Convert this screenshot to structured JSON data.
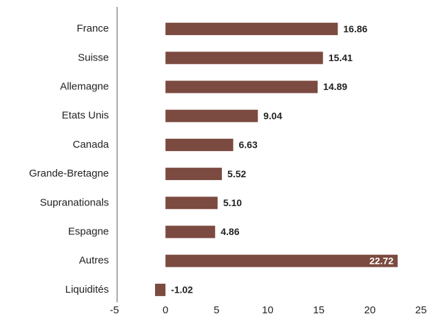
{
  "chart_data": {
    "type": "bar",
    "orientation": "horizontal",
    "categories": [
      "France",
      "Suisse",
      "Allemagne",
      "Etats Unis",
      "Canada",
      "Grande-Bretagne",
      "Supranationals",
      "Espagne",
      "Autres",
      "Liquidités"
    ],
    "values": [
      16.86,
      15.41,
      14.89,
      9.04,
      6.63,
      5.52,
      5.1,
      4.86,
      22.72,
      -1.02
    ],
    "value_labels": [
      "16.86",
      "15.41",
      "14.89",
      "9.04",
      "6.63",
      "5.52",
      "5.10",
      "4.86",
      "22.72",
      "-1.02"
    ],
    "color": "#7b4a40",
    "xlim": [
      -5,
      25
    ],
    "xticks": [
      -5,
      0,
      5,
      10,
      15,
      20,
      25
    ],
    "grid": false
  }
}
